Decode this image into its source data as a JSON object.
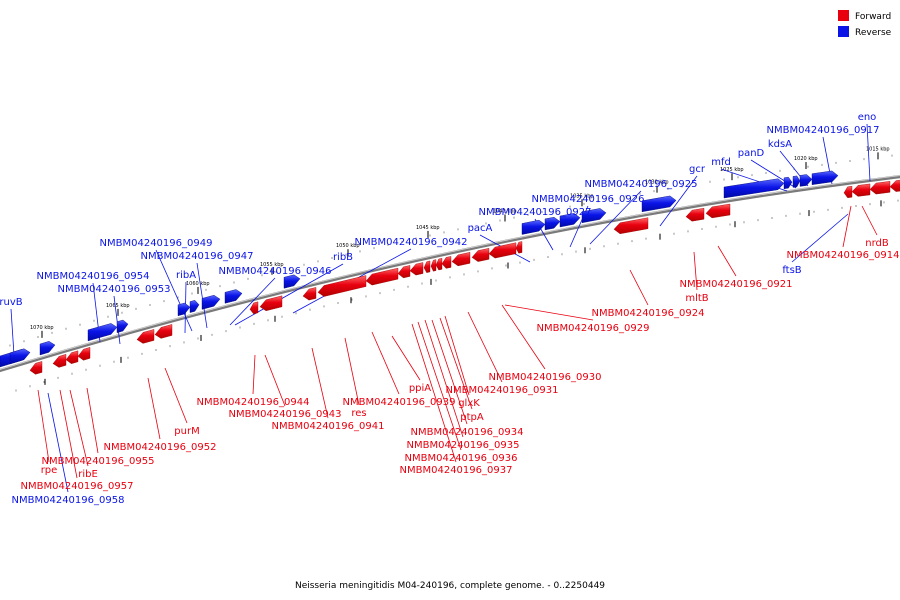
{
  "legend": {
    "forward_label": "Forward",
    "reverse_label": "Reverse",
    "forward_color": "#e8000f",
    "reverse_color": "#0a14e6"
  },
  "caption": "Neisseria meningitidis M04-240196, complete genome. - 0..2250449",
  "tick_labels": [
    "1015 kbp",
    "1020 kbp",
    "1025 kbp",
    "1030 kbp",
    "1035 kbp",
    "1040 kbp",
    "1045 kbp",
    "1050 kbp",
    "1055 kbp",
    "1060 kbp",
    "1065 kbp",
    "1070 kbp"
  ],
  "genes": [
    {
      "label": "eno",
      "strand": "reverse"
    },
    {
      "label": "NMBM04240196_0917",
      "strand": "reverse"
    },
    {
      "label": "kdsA",
      "strand": "reverse"
    },
    {
      "label": "panD",
      "strand": "reverse"
    },
    {
      "label": "mfd",
      "strand": "reverse"
    },
    {
      "label": "gcr",
      "strand": "reverse"
    },
    {
      "label": "NMBM04240196_0925",
      "strand": "reverse"
    },
    {
      "label": "NMBM04240196_0926",
      "strand": "reverse"
    },
    {
      "label": "NMBM04240196_0927",
      "strand": "reverse"
    },
    {
      "label": "pacA",
      "strand": "reverse"
    },
    {
      "label": "NMBM04240196_0942",
      "strand": "reverse"
    },
    {
      "label": "ribB",
      "strand": "reverse"
    },
    {
      "label": "NMBM04240196_0946",
      "strand": "reverse"
    },
    {
      "label": "NMBM04240196_0947",
      "strand": "reverse"
    },
    {
      "label": "NMBM04240196_0949",
      "strand": "reverse"
    },
    {
      "label": "ribA",
      "strand": "reverse"
    },
    {
      "label": "NMBM04240196_0954",
      "strand": "reverse"
    },
    {
      "label": "NMBM04240196_0953",
      "strand": "reverse"
    },
    {
      "label": "ruvB",
      "strand": "reverse"
    },
    {
      "label": "ftsB",
      "strand": "reverse"
    },
    {
      "label": "NMBM04240196_0958",
      "strand": "reverse"
    },
    {
      "label": "nrdB",
      "strand": "forward"
    },
    {
      "label": "NMBM04240196_0914",
      "strand": "forward"
    },
    {
      "label": "NMBM04240196_0921",
      "strand": "forward"
    },
    {
      "label": "mltB",
      "strand": "forward"
    },
    {
      "label": "NMBM04240196_0924",
      "strand": "forward"
    },
    {
      "label": "NMBM04240196_0929",
      "strand": "forward"
    },
    {
      "label": "NMBM04240196_0930",
      "strand": "forward"
    },
    {
      "label": "NMBM04240196_0931",
      "strand": "forward"
    },
    {
      "label": "ppiA",
      "strand": "forward"
    },
    {
      "label": "NMBM04240196_0939",
      "strand": "forward"
    },
    {
      "label": "glxK",
      "strand": "forward"
    },
    {
      "label": "ptpA",
      "strand": "forward"
    },
    {
      "label": "NMBM04240196_0934",
      "strand": "forward"
    },
    {
      "label": "NMBM04240196_0935",
      "strand": "forward"
    },
    {
      "label": "NMBM04240196_0936",
      "strand": "forward"
    },
    {
      "label": "NMBM04240196_0937",
      "strand": "forward"
    },
    {
      "label": "res",
      "strand": "forward"
    },
    {
      "label": "NMBM04240196_0941",
      "strand": "forward"
    },
    {
      "label": "NMBM04240196_0943",
      "strand": "forward"
    },
    {
      "label": "NMBM04240196_0944",
      "strand": "forward"
    },
    {
      "label": "purM",
      "strand": "forward"
    },
    {
      "label": "NMBM04240196_0952",
      "strand": "forward"
    },
    {
      "label": "NMBM04240196_0955",
      "strand": "forward"
    },
    {
      "label": "ribE",
      "strand": "forward"
    },
    {
      "label": "rpe",
      "strand": "forward"
    },
    {
      "label": "NMBM04240196_0957",
      "strand": "forward"
    }
  ]
}
